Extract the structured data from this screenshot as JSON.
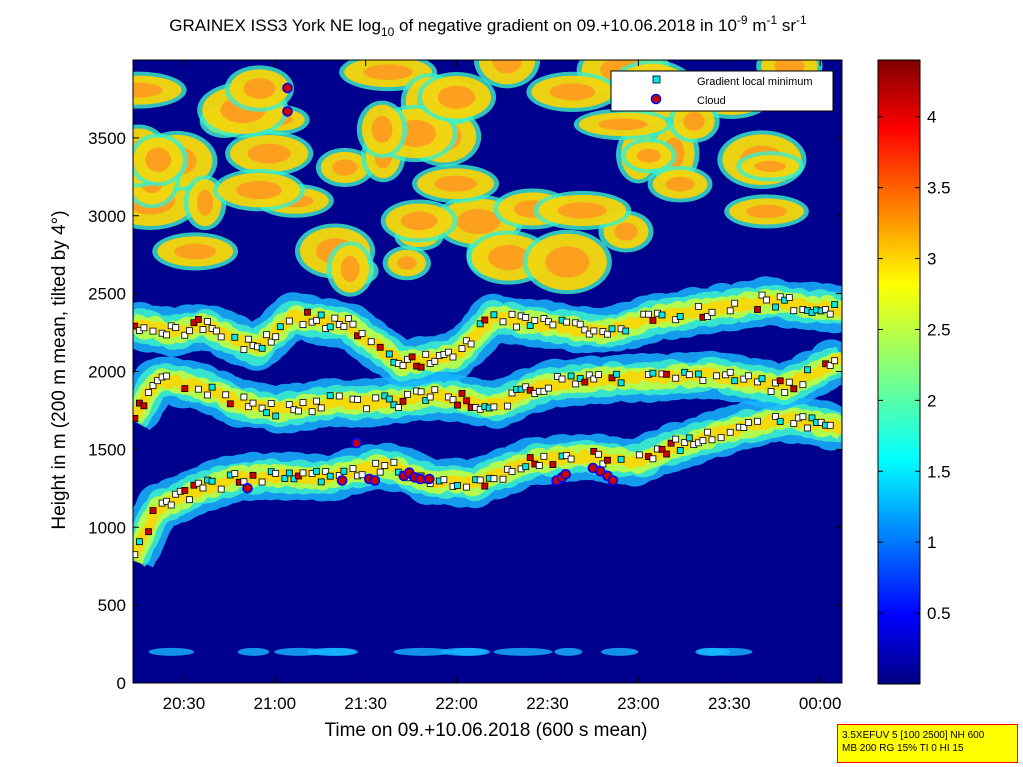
{
  "chart_data": {
    "type": "heatmap",
    "title": {
      "prefix": "GRAINEX ISS3 York NE log",
      "prefix_sub": "10",
      "middle": " of negative gradient on 09.+10.06.2018 in 10",
      "sup1": "-9",
      "m_unit": " m",
      "sup2": "-1",
      "sr_unit": " sr",
      "sup3": "-1"
    },
    "xlabel": "Time on 09.+10.06.2018 (600 s mean)",
    "ylabel": "Height in m (200 m mean, tilted by 4°)",
    "x_ticks": [
      "20:30",
      "21:00",
      "21:30",
      "22:00",
      "22:30",
      "23:00",
      "23:30",
      "00:00"
    ],
    "x_tick_hours": [
      20.5,
      21.0,
      21.5,
      22.0,
      22.5,
      23.0,
      23.5,
      24.0
    ],
    "xlim_hours": [
      20.22,
      24.12
    ],
    "y_ticks": [
      0,
      500,
      1000,
      1500,
      2000,
      2500,
      3000,
      3500
    ],
    "ylim": [
      0,
      4000
    ],
    "colorbar": {
      "ticks": [
        "0.5",
        "1",
        "1.5",
        "2",
        "2.5",
        "3",
        "3.5",
        "4"
      ],
      "tick_values": [
        0.5,
        1,
        1.5,
        2,
        2.5,
        3,
        3.5,
        4
      ],
      "range": [
        0,
        4.4
      ],
      "colormap": "jet"
    },
    "legend": {
      "placement": "top-right",
      "entries": [
        {
          "label": "Gradient local minimum",
          "marker": "square",
          "color": "#00e5e5"
        },
        {
          "label": "Cloud",
          "marker": "circle",
          "color": "#cc0000",
          "edge": "#0000ff"
        }
      ]
    },
    "layers": [
      {
        "name": "low level layer",
        "points": [
          [
            20.22,
            800
          ],
          [
            20.35,
            1120
          ],
          [
            20.6,
            1250
          ],
          [
            20.8,
            1320
          ],
          [
            21.0,
            1330
          ],
          [
            21.3,
            1320
          ],
          [
            21.6,
            1400
          ],
          [
            21.85,
            1300
          ],
          [
            22.1,
            1280
          ],
          [
            22.4,
            1420
          ],
          [
            22.7,
            1460
          ],
          [
            23.0,
            1420
          ],
          [
            23.2,
            1520
          ],
          [
            23.5,
            1620
          ],
          [
            23.8,
            1700
          ],
          [
            24.12,
            1640
          ]
        ]
      },
      {
        "name": "middle layer",
        "points": [
          [
            20.22,
            1700
          ],
          [
            20.35,
            1950
          ],
          [
            20.6,
            1900
          ],
          [
            20.8,
            1800
          ],
          [
            21.0,
            1750
          ],
          [
            21.3,
            1800
          ],
          [
            21.6,
            1800
          ],
          [
            21.9,
            1850
          ],
          [
            22.2,
            1780
          ],
          [
            22.5,
            1920
          ],
          [
            22.8,
            1950
          ],
          [
            23.1,
            1960
          ],
          [
            23.4,
            1980
          ],
          [
            23.8,
            1900
          ],
          [
            24.12,
            2080
          ]
        ]
      },
      {
        "name": "upper layer",
        "points": [
          [
            20.22,
            2300
          ],
          [
            20.45,
            2250
          ],
          [
            20.6,
            2300
          ],
          [
            20.9,
            2150
          ],
          [
            21.1,
            2350
          ],
          [
            21.4,
            2300
          ],
          [
            21.7,
            2050
          ],
          [
            22.0,
            2100
          ],
          [
            22.2,
            2350
          ],
          [
            22.5,
            2300
          ],
          [
            22.8,
            2250
          ],
          [
            23.1,
            2350
          ],
          [
            23.4,
            2400
          ],
          [
            23.7,
            2450
          ],
          [
            24.12,
            2400
          ]
        ]
      }
    ],
    "cloud_points": [
      [
        20.85,
        1250
      ],
      [
        21.07,
        3820
      ],
      [
        21.07,
        3670
      ],
      [
        21.45,
        1540
      ],
      [
        21.37,
        1300
      ],
      [
        21.52,
        1310
      ],
      [
        21.55,
        1300
      ],
      [
        21.71,
        1330
      ],
      [
        21.74,
        1350
      ],
      [
        21.77,
        1320
      ],
      [
        21.8,
        1310
      ],
      [
        21.85,
        1310
      ],
      [
        22.55,
        1300
      ],
      [
        22.58,
        1320
      ],
      [
        22.6,
        1340
      ],
      [
        22.75,
        1380
      ],
      [
        22.79,
        1360
      ],
      [
        22.83,
        1330
      ],
      [
        22.86,
        1300
      ]
    ]
  },
  "info_box": {
    "line1": "3.5XEFUV 5 [100 2500] NH 600",
    "line2": "MB 200 RG 15% TI 0 HI 15"
  }
}
